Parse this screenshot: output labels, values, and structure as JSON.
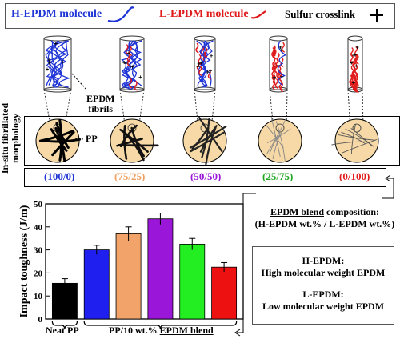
{
  "legend": {
    "h_epdm_label": "H-EPDM molecule",
    "l_epdm_label": "L-EPDM molecule",
    "crosslink_label": "Sulfur crosslink",
    "h_color": "#1f35d6",
    "l_color": "#e01b1b"
  },
  "morphology": {
    "side_label_line1": "In-situ fibrillated",
    "side_label_line2": "morphology",
    "fibrils_label_line1": "EPDM",
    "fibrils_label_line2": "fibrils",
    "pp_label": "PP",
    "disk_color": "#f6d9a6"
  },
  "ratios": [
    {
      "label": "(100/0)",
      "color": "#1f35d6"
    },
    {
      "label": "(75/25)",
      "color": "#f0a060"
    },
    {
      "label": "(50/50)",
      "color": "#9a16d8"
    },
    {
      "label": "(25/75)",
      "color": "#1fa51f"
    },
    {
      "label": "(0/100)",
      "color": "#e01b1b"
    }
  ],
  "composition_note": {
    "line1": "EPDM blend",
    "line1_suffix": " composition:",
    "line2": "(H-EPDM wt.% / L-EPDM wt.%)"
  },
  "definitions": {
    "h_title": "H-EPDM:",
    "h_desc": "High molecular weight EPDM",
    "l_title": "L-EPDM:",
    "l_desc": "Low molecular weight EPDM"
  },
  "chart_data": {
    "type": "bar",
    "ylabel": "Impact toughness (J/m)",
    "ylim": [
      0,
      50
    ],
    "yticks": [
      0,
      10,
      20,
      30,
      40,
      50
    ],
    "values": [
      15.5,
      30.0,
      37.0,
      43.5,
      32.5,
      22.5
    ],
    "errors": [
      2.0,
      2.0,
      3.0,
      2.5,
      2.5,
      2.0
    ],
    "colors": [
      "#000000",
      "#1f1ff0",
      "#f2a36a",
      "#9a16d8",
      "#22ee22",
      "#ee1111"
    ],
    "group_labels": {
      "neat": "Neat PP",
      "blend_prefix": "PP/10 wt.% ",
      "blend_underlined": "EPDM blend"
    }
  }
}
